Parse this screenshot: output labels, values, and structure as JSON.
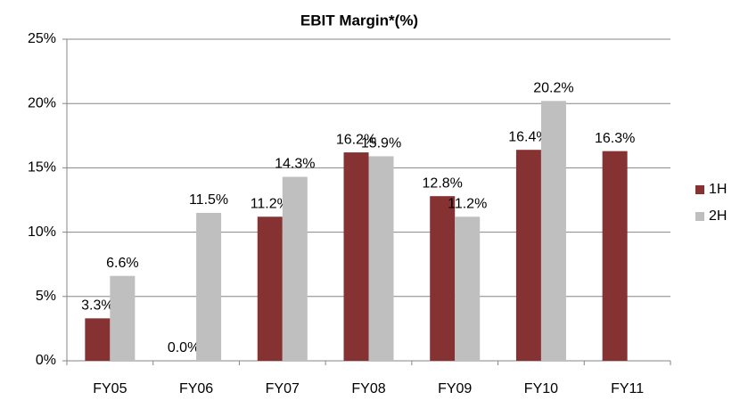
{
  "chart_data": {
    "type": "bar",
    "title": "EBIT Margin*(%)",
    "categories": [
      "FY05",
      "FY06",
      "FY07",
      "FY08",
      "FY09",
      "FY10",
      "FY11"
    ],
    "series": [
      {
        "name": "1H",
        "color": "#873232",
        "values": [
          3.3,
          0.0,
          11.2,
          16.2,
          12.8,
          16.4,
          16.3
        ],
        "value_labels": [
          "3.3%",
          "0.0%",
          "11.2%",
          "16.2%",
          "12.8%",
          "16.4%",
          "16.3%"
        ]
      },
      {
        "name": "2H",
        "color": "#bfbfbf",
        "values": [
          6.6,
          11.5,
          14.3,
          15.9,
          11.2,
          20.2,
          null
        ],
        "value_labels": [
          "6.6%",
          "11.5%",
          "14.3%",
          "15.9%",
          "11.2%",
          "20.2%",
          null
        ]
      }
    ],
    "ylim": [
      0,
      25
    ],
    "yticks": [
      {
        "value": 0,
        "label": "0%"
      },
      {
        "value": 5,
        "label": "5%"
      },
      {
        "value": 10,
        "label": "10%"
      },
      {
        "value": 15,
        "label": "15%"
      },
      {
        "value": 20,
        "label": "20%"
      },
      {
        "value": 25,
        "label": "25%"
      }
    ],
    "grid": true,
    "legend": "right"
  }
}
